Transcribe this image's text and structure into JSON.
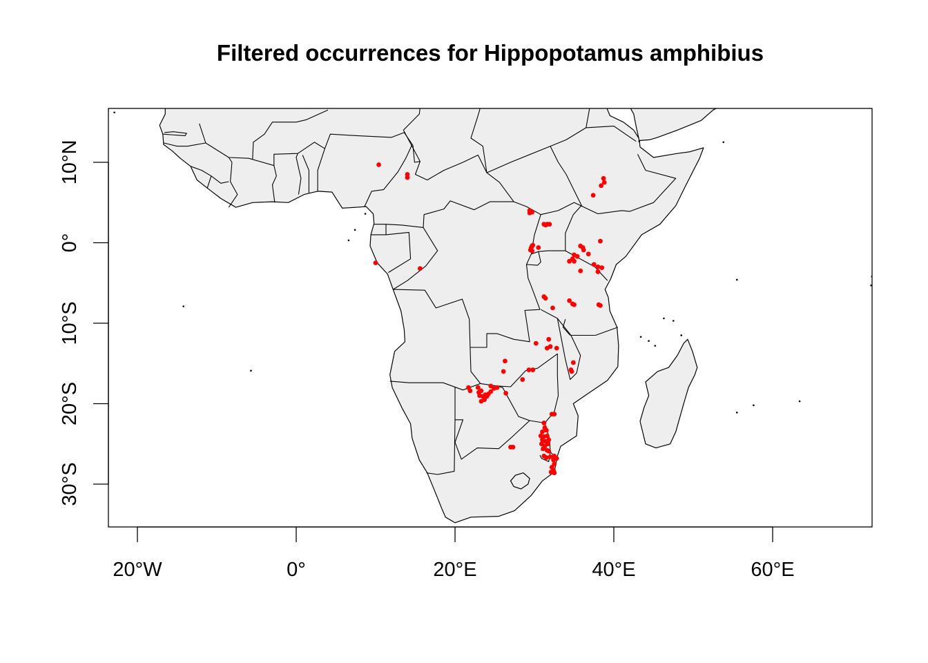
{
  "title": "Filtered occurrences for Hippopotamus amphibius",
  "colors": {
    "land": "#eeeeee",
    "border": "#000000",
    "points": "#ff0000",
    "background": "#ffffff"
  },
  "chart_data": {
    "type": "scatter",
    "title": "Filtered occurrences for Hippopotamus amphibius",
    "xlabel": "",
    "ylabel": "",
    "xlim": [
      -24,
      72
    ],
    "ylim": [
      -35,
      17
    ],
    "grid": false,
    "x_ticks": [
      {
        "value": -20,
        "label": "20°W"
      },
      {
        "value": 0,
        "label": "0°"
      },
      {
        "value": 20,
        "label": "20°E"
      },
      {
        "value": 40,
        "label": "40°E"
      },
      {
        "value": 60,
        "label": "60°E"
      }
    ],
    "y_ticks": [
      {
        "value": 10,
        "label": "10°N"
      },
      {
        "value": 0,
        "label": "0°"
      },
      {
        "value": -10,
        "label": "10°S"
      },
      {
        "value": -20,
        "label": "20°S"
      },
      {
        "value": -30,
        "label": "30°S"
      }
    ],
    "series": [
      {
        "points": [
          [
            10.4,
            9.7
          ],
          [
            14.0,
            8.5
          ],
          [
            14.0,
            8.1
          ],
          [
            38.7,
            8.0
          ],
          [
            38.8,
            7.5
          ],
          [
            38.4,
            7.1
          ],
          [
            37.4,
            5.9
          ],
          [
            29.4,
            4.0
          ],
          [
            29.7,
            3.8
          ],
          [
            29.4,
            3.7
          ],
          [
            31.2,
            2.3
          ],
          [
            31.6,
            2.3
          ],
          [
            31.9,
            2.3
          ],
          [
            31.4,
            2.2
          ],
          [
            29.7,
            -0.4
          ],
          [
            29.6,
            -0.6
          ],
          [
            29.8,
            -0.3
          ],
          [
            30.5,
            -0.6
          ],
          [
            29.5,
            -0.9
          ],
          [
            29.7,
            -1.0
          ],
          [
            35.8,
            -0.4
          ],
          [
            36.1,
            -0.6
          ],
          [
            36.2,
            -0.9
          ],
          [
            36.8,
            -1.4
          ],
          [
            35.0,
            -1.5
          ],
          [
            35.4,
            -1.7
          ],
          [
            34.8,
            -2.0
          ],
          [
            34.4,
            -2.3
          ],
          [
            35.0,
            -2.3
          ],
          [
            38.3,
            0.2
          ],
          [
            37.5,
            -2.7
          ],
          [
            38.0,
            -3.0
          ],
          [
            38.5,
            -3.1
          ],
          [
            38.0,
            -3.6
          ],
          [
            35.8,
            -3.5
          ],
          [
            10.0,
            -2.5
          ],
          [
            15.6,
            -3.2
          ],
          [
            31.2,
            -6.7
          ],
          [
            31.4,
            -6.9
          ],
          [
            34.4,
            -7.2
          ],
          [
            34.8,
            -7.6
          ],
          [
            35.0,
            -7.7
          ],
          [
            32.3,
            -8.1
          ],
          [
            38.1,
            -7.7
          ],
          [
            38.3,
            -7.8
          ],
          [
            30.2,
            -12.5
          ],
          [
            31.6,
            -13.1
          ],
          [
            32.0,
            -12.9
          ],
          [
            31.8,
            -12.0
          ],
          [
            32.8,
            -13.1
          ],
          [
            26.3,
            -14.7
          ],
          [
            26.1,
            -16.0
          ],
          [
            29.3,
            -15.8
          ],
          [
            29.8,
            -15.8
          ],
          [
            34.9,
            -14.9
          ],
          [
            34.6,
            -15.8
          ],
          [
            34.7,
            -16.0
          ],
          [
            28.5,
            -17.0
          ],
          [
            21.7,
            -18.0
          ],
          [
            21.9,
            -18.4
          ],
          [
            22.9,
            -18.0
          ],
          [
            23.0,
            -18.6
          ],
          [
            23.3,
            -18.4
          ],
          [
            23.1,
            -19.0
          ],
          [
            23.5,
            -19.1
          ],
          [
            23.8,
            -18.9
          ],
          [
            23.7,
            -19.5
          ],
          [
            23.3,
            -19.7
          ],
          [
            24.0,
            -19.1
          ],
          [
            24.2,
            -18.8
          ],
          [
            24.5,
            -18.5
          ],
          [
            24.9,
            -18.1
          ],
          [
            25.3,
            -18.0
          ],
          [
            24.5,
            -17.8
          ],
          [
            26.4,
            -18.7
          ],
          [
            32.5,
            -21.3
          ],
          [
            32.2,
            -21.3
          ],
          [
            31.2,
            -22.4
          ],
          [
            31.3,
            -23.0
          ],
          [
            31.0,
            -23.5
          ],
          [
            31.5,
            -23.3
          ],
          [
            30.8,
            -24.0
          ],
          [
            31.2,
            -24.1
          ],
          [
            31.6,
            -24.0
          ],
          [
            31.0,
            -24.5
          ],
          [
            31.4,
            -24.7
          ],
          [
            31.8,
            -24.5
          ],
          [
            30.9,
            -25.0
          ],
          [
            31.3,
            -25.3
          ],
          [
            31.7,
            -25.0
          ],
          [
            31.1,
            -25.6
          ],
          [
            31.6,
            -25.8
          ],
          [
            31.8,
            -25.9
          ],
          [
            31.2,
            -26.5
          ],
          [
            31.5,
            -26.7
          ],
          [
            27.0,
            -25.4
          ],
          [
            27.3,
            -25.4
          ],
          [
            32.0,
            -26.6
          ],
          [
            32.5,
            -26.5
          ],
          [
            32.8,
            -26.8
          ],
          [
            32.4,
            -27.0
          ],
          [
            32.5,
            -27.5
          ],
          [
            32.2,
            -27.9
          ],
          [
            32.4,
            -28.3
          ],
          [
            32.1,
            -28.5
          ],
          [
            32.5,
            -28.6
          ]
        ]
      }
    ]
  }
}
